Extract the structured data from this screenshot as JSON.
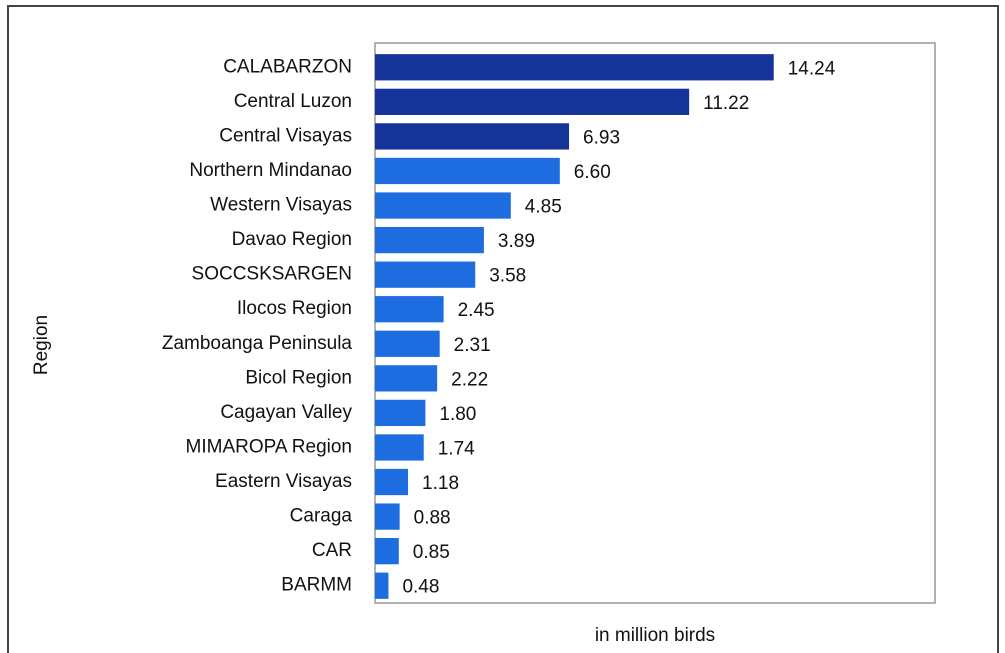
{
  "chart_data": {
    "type": "barh",
    "categories": [
      "CALABARZON",
      "Central Luzon",
      "Central Visayas",
      "Northern Mindanao",
      "Western Visayas",
      "Davao Region",
      "SOCCSKSARGEN",
      "Ilocos Region",
      "Zamboanga Peninsula",
      "Bicol Region",
      "Cagayan Valley",
      "MIMAROPA Region",
      "Eastern Visayas",
      "Caraga",
      "CAR",
      "BARMM"
    ],
    "values": [
      14.24,
      11.22,
      6.93,
      6.6,
      4.85,
      3.89,
      3.58,
      2.45,
      2.31,
      2.22,
      1.8,
      1.74,
      1.18,
      0.88,
      0.85,
      0.48
    ],
    "value_labels": [
      "14.24",
      "11.22",
      "6.93",
      "6.60",
      "4.85",
      "3.89",
      "3.58",
      "2.45",
      "2.31",
      "2.22",
      "1.80",
      "1.74",
      "1.18",
      "0.88",
      "0.85",
      "0.48"
    ],
    "colors": [
      "#16339a",
      "#16339a",
      "#16339a",
      "#1e6de0",
      "#1e6de0",
      "#1e6de0",
      "#1e6de0",
      "#1e6de0",
      "#1e6de0",
      "#1e6de0",
      "#1e6de0",
      "#1e6de0",
      "#1e6de0",
      "#1e6de0",
      "#1e6de0",
      "#1e6de0"
    ],
    "xlim": [
      0,
      20
    ],
    "x_label": "in million birds",
    "y_label": "Region"
  }
}
